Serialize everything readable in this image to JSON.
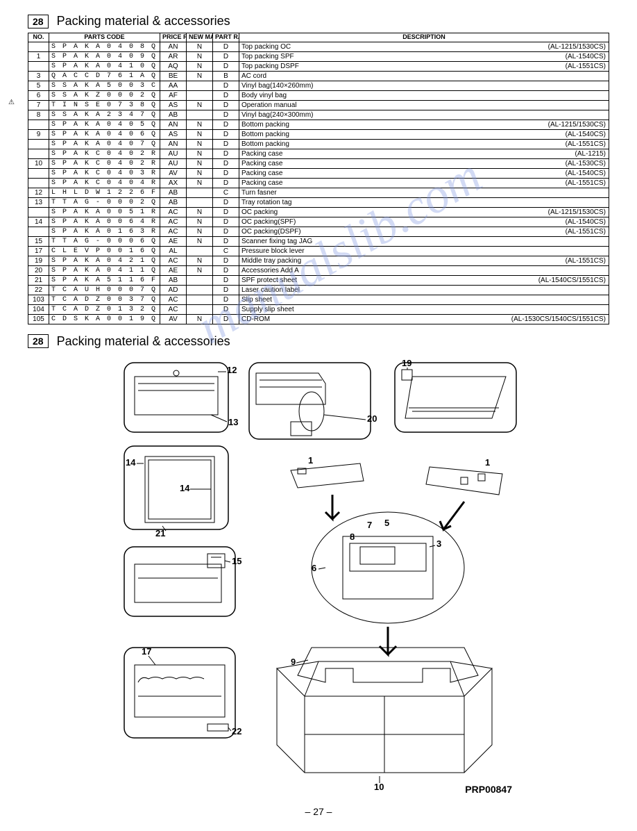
{
  "section_number": "28",
  "section_title": "Packing material & accessories",
  "watermark_text": "manualslib.com",
  "watermark_color": "#8097e0",
  "caution_symbol": "⚠",
  "page_number": "– 27 –",
  "diagram_code": "PRP00847",
  "columns": {
    "no": "NO.",
    "parts_code": "PARTS CODE",
    "price_rank": "PRICE RANK",
    "new_mark": "NEW MARK",
    "part_rank": "PART RANK",
    "description": "DESCRIPTION"
  },
  "rows": [
    {
      "no": "",
      "code": "S P A K A 0 4 0 8 Q S Z Z",
      "pr": "AN",
      "nm": "N",
      "pk": "D",
      "desc": "Top packing OC",
      "right": "(AL-1215/1530CS)"
    },
    {
      "no": "1",
      "code": "S P A K A 0 4 0 9 Q S Z Z",
      "pr": "AR",
      "nm": "N",
      "pk": "D",
      "desc": "Top packing SPF",
      "right": "(AL-1540CS)"
    },
    {
      "no": "",
      "code": "S P A K A 0 4 1 0 Q S Z Z",
      "pr": "AQ",
      "nm": "N",
      "pk": "D",
      "desc": "Top packing DSPF",
      "right": "(AL-1551CS)"
    },
    {
      "no": "3",
      "code": "Q A C C D 7 6 1 A Q C Z Z",
      "pr": "BE",
      "nm": "N",
      "pk": "B",
      "desc": "AC cord",
      "right": ""
    },
    {
      "no": "5",
      "code": "S S A K A 5 0 0 3 C C Z Z",
      "pr": "AA",
      "nm": "",
      "pk": "D",
      "desc": "Vinyl bag(140×260mm)",
      "right": ""
    },
    {
      "no": "6",
      "code": "S S A K Z 0 0 0 2 Q S Z Z",
      "pr": "AF",
      "nm": "",
      "pk": "D",
      "desc": "Body vinyl bag",
      "right": ""
    },
    {
      "no": "7",
      "code": "T I N S E 0 7 3 8 Q S Z 1",
      "pr": "AS",
      "nm": "N",
      "pk": "D",
      "desc": "Operation manual",
      "right": ""
    },
    {
      "no": "8",
      "code": "S S A K A 2 3 4 7 Q C Z Z",
      "pr": "AB",
      "nm": "",
      "pk": "D",
      "desc": "Vinyl bag(240×300mm)",
      "right": ""
    },
    {
      "no": "",
      "code": "S P A K A 0 4 0 5 Q S Z Z",
      "pr": "AN",
      "nm": "N",
      "pk": "D",
      "desc": "Bottom packing",
      "right": "(AL-1215/1530CS)"
    },
    {
      "no": "9",
      "code": "S P A K A 0 4 0 6 Q S Z Z",
      "pr": "AS",
      "nm": "N",
      "pk": "D",
      "desc": "Bottom packing",
      "right": "(AL-1540CS)"
    },
    {
      "no": "",
      "code": "S P A K A 0 4 0 7 Q S Z Z",
      "pr": "AN",
      "nm": "N",
      "pk": "D",
      "desc": "Bottom packing",
      "right": "(AL-1551CS)"
    },
    {
      "no": "",
      "code": "S P A K C 0 4 0 2 R S Z Z",
      "pr": "AU",
      "nm": "N",
      "pk": "D",
      "desc": "Packing case",
      "right": "(AL-1215)"
    },
    {
      "no": "10",
      "code": "S P A K C 0 4 0 2 R S 1 1",
      "pr": "AU",
      "nm": "N",
      "pk": "D",
      "desc": "Packing case",
      "right": "(AL-1530CS)"
    },
    {
      "no": "",
      "code": "S P A K C 0 4 0 3 R S Z Z",
      "pr": "AV",
      "nm": "N",
      "pk": "D",
      "desc": "Packing case",
      "right": "(AL-1540CS)"
    },
    {
      "no": "",
      "code": "S P A K C 0 4 0 4 R S Z Z",
      "pr": "AX",
      "nm": "N",
      "pk": "D",
      "desc": "Packing case",
      "right": "(AL-1551CS)"
    },
    {
      "no": "12",
      "code": "L H L D W 1 2 2 6 F C Z Z",
      "pr": "AB",
      "nm": "",
      "pk": "C",
      "desc": "Turn fasner",
      "right": ""
    },
    {
      "no": "13",
      "code": "T T A G - 0 0 0 2 Q S Z Z",
      "pr": "AB",
      "nm": "",
      "pk": "D",
      "desc": "Tray rotation tag",
      "right": ""
    },
    {
      "no": "",
      "code": "S P A K A 0 0 5 1 R S Z Z",
      "pr": "AC",
      "nm": "N",
      "pk": "D",
      "desc": "OC packing",
      "right": "(AL-1215/1530CS)"
    },
    {
      "no": "14",
      "code": "S P A K A 0 0 6 4 R S Z 1",
      "pr": "AC",
      "nm": "N",
      "pk": "D",
      "desc": "OC packing(SPF)",
      "right": "(AL-1540CS)"
    },
    {
      "no": "",
      "code": "S P A K A 0 1 6 3 R S Z Z",
      "pr": "AC",
      "nm": "N",
      "pk": "D",
      "desc": "OC packing(DSPF)",
      "right": "(AL-1551CS)"
    },
    {
      "no": "15",
      "code": "T T A G - 0 0 0 6 Q S Z Z",
      "pr": "AE",
      "nm": "N",
      "pk": "D",
      "desc": "Scanner fixing tag JAG",
      "right": ""
    },
    {
      "no": "17",
      "code": "C L E V P 0 0 1 6 Q S 0 1",
      "pr": "AL",
      "nm": "",
      "pk": "C",
      "desc": "Pressure block lever",
      "right": ""
    },
    {
      "no": "19",
      "code": "S P A K A 0 4 2 1 Q S Z Z",
      "pr": "AC",
      "nm": "N",
      "pk": "D",
      "desc": "Middle tray packing",
      "right": "(AL-1551CS)"
    },
    {
      "no": "20",
      "code": "S P A K A 0 4 1 1 Q S Z Z",
      "pr": "AE",
      "nm": "N",
      "pk": "D",
      "desc": "Accessories Add A",
      "right": ""
    },
    {
      "no": "21",
      "code": "S P A K A 5 1 1 6 F C Z Z",
      "pr": "AB",
      "nm": "",
      "pk": "D",
      "desc": "SPF protect sheet",
      "right": "(AL-1540CS/1551CS)"
    },
    {
      "no": "22",
      "code": "T C A U H 0 0 0 7 Q S Z Z",
      "pr": "AD",
      "nm": "",
      "pk": "D",
      "desc": "Laser caution label",
      "right": ""
    },
    {
      "no": "103",
      "code": "T C A D Z 0 0 3 7 Q S Z Z",
      "pr": "AC",
      "nm": "",
      "pk": "D",
      "desc": "Slip sheet",
      "right": ""
    },
    {
      "no": "104",
      "code": "T C A D Z 0 1 3 2 Q S Z Z",
      "pr": "AC",
      "nm": "",
      "pk": "D",
      "desc": "Supply slip sheet",
      "right": ""
    },
    {
      "no": "105",
      "code": "C D S K A 0 0 1 9 Q S 3 4",
      "pr": "AV",
      "nm": "N",
      "pk": "D",
      "desc": "CD-ROM",
      "right": "(AL-1530CS/1540CS/1551CS)"
    }
  ],
  "diagram": {
    "panel_rx": 14,
    "stroke": "#000000",
    "stroke_width": 1.5,
    "font_size": 13,
    "font_weight": "bold",
    "labels": [
      "1",
      "1",
      "3",
      "5",
      "6",
      "7",
      "8",
      "9",
      "10",
      "12",
      "13",
      "14",
      "14",
      "15",
      "17",
      "19",
      "20",
      "21",
      "22"
    ]
  }
}
